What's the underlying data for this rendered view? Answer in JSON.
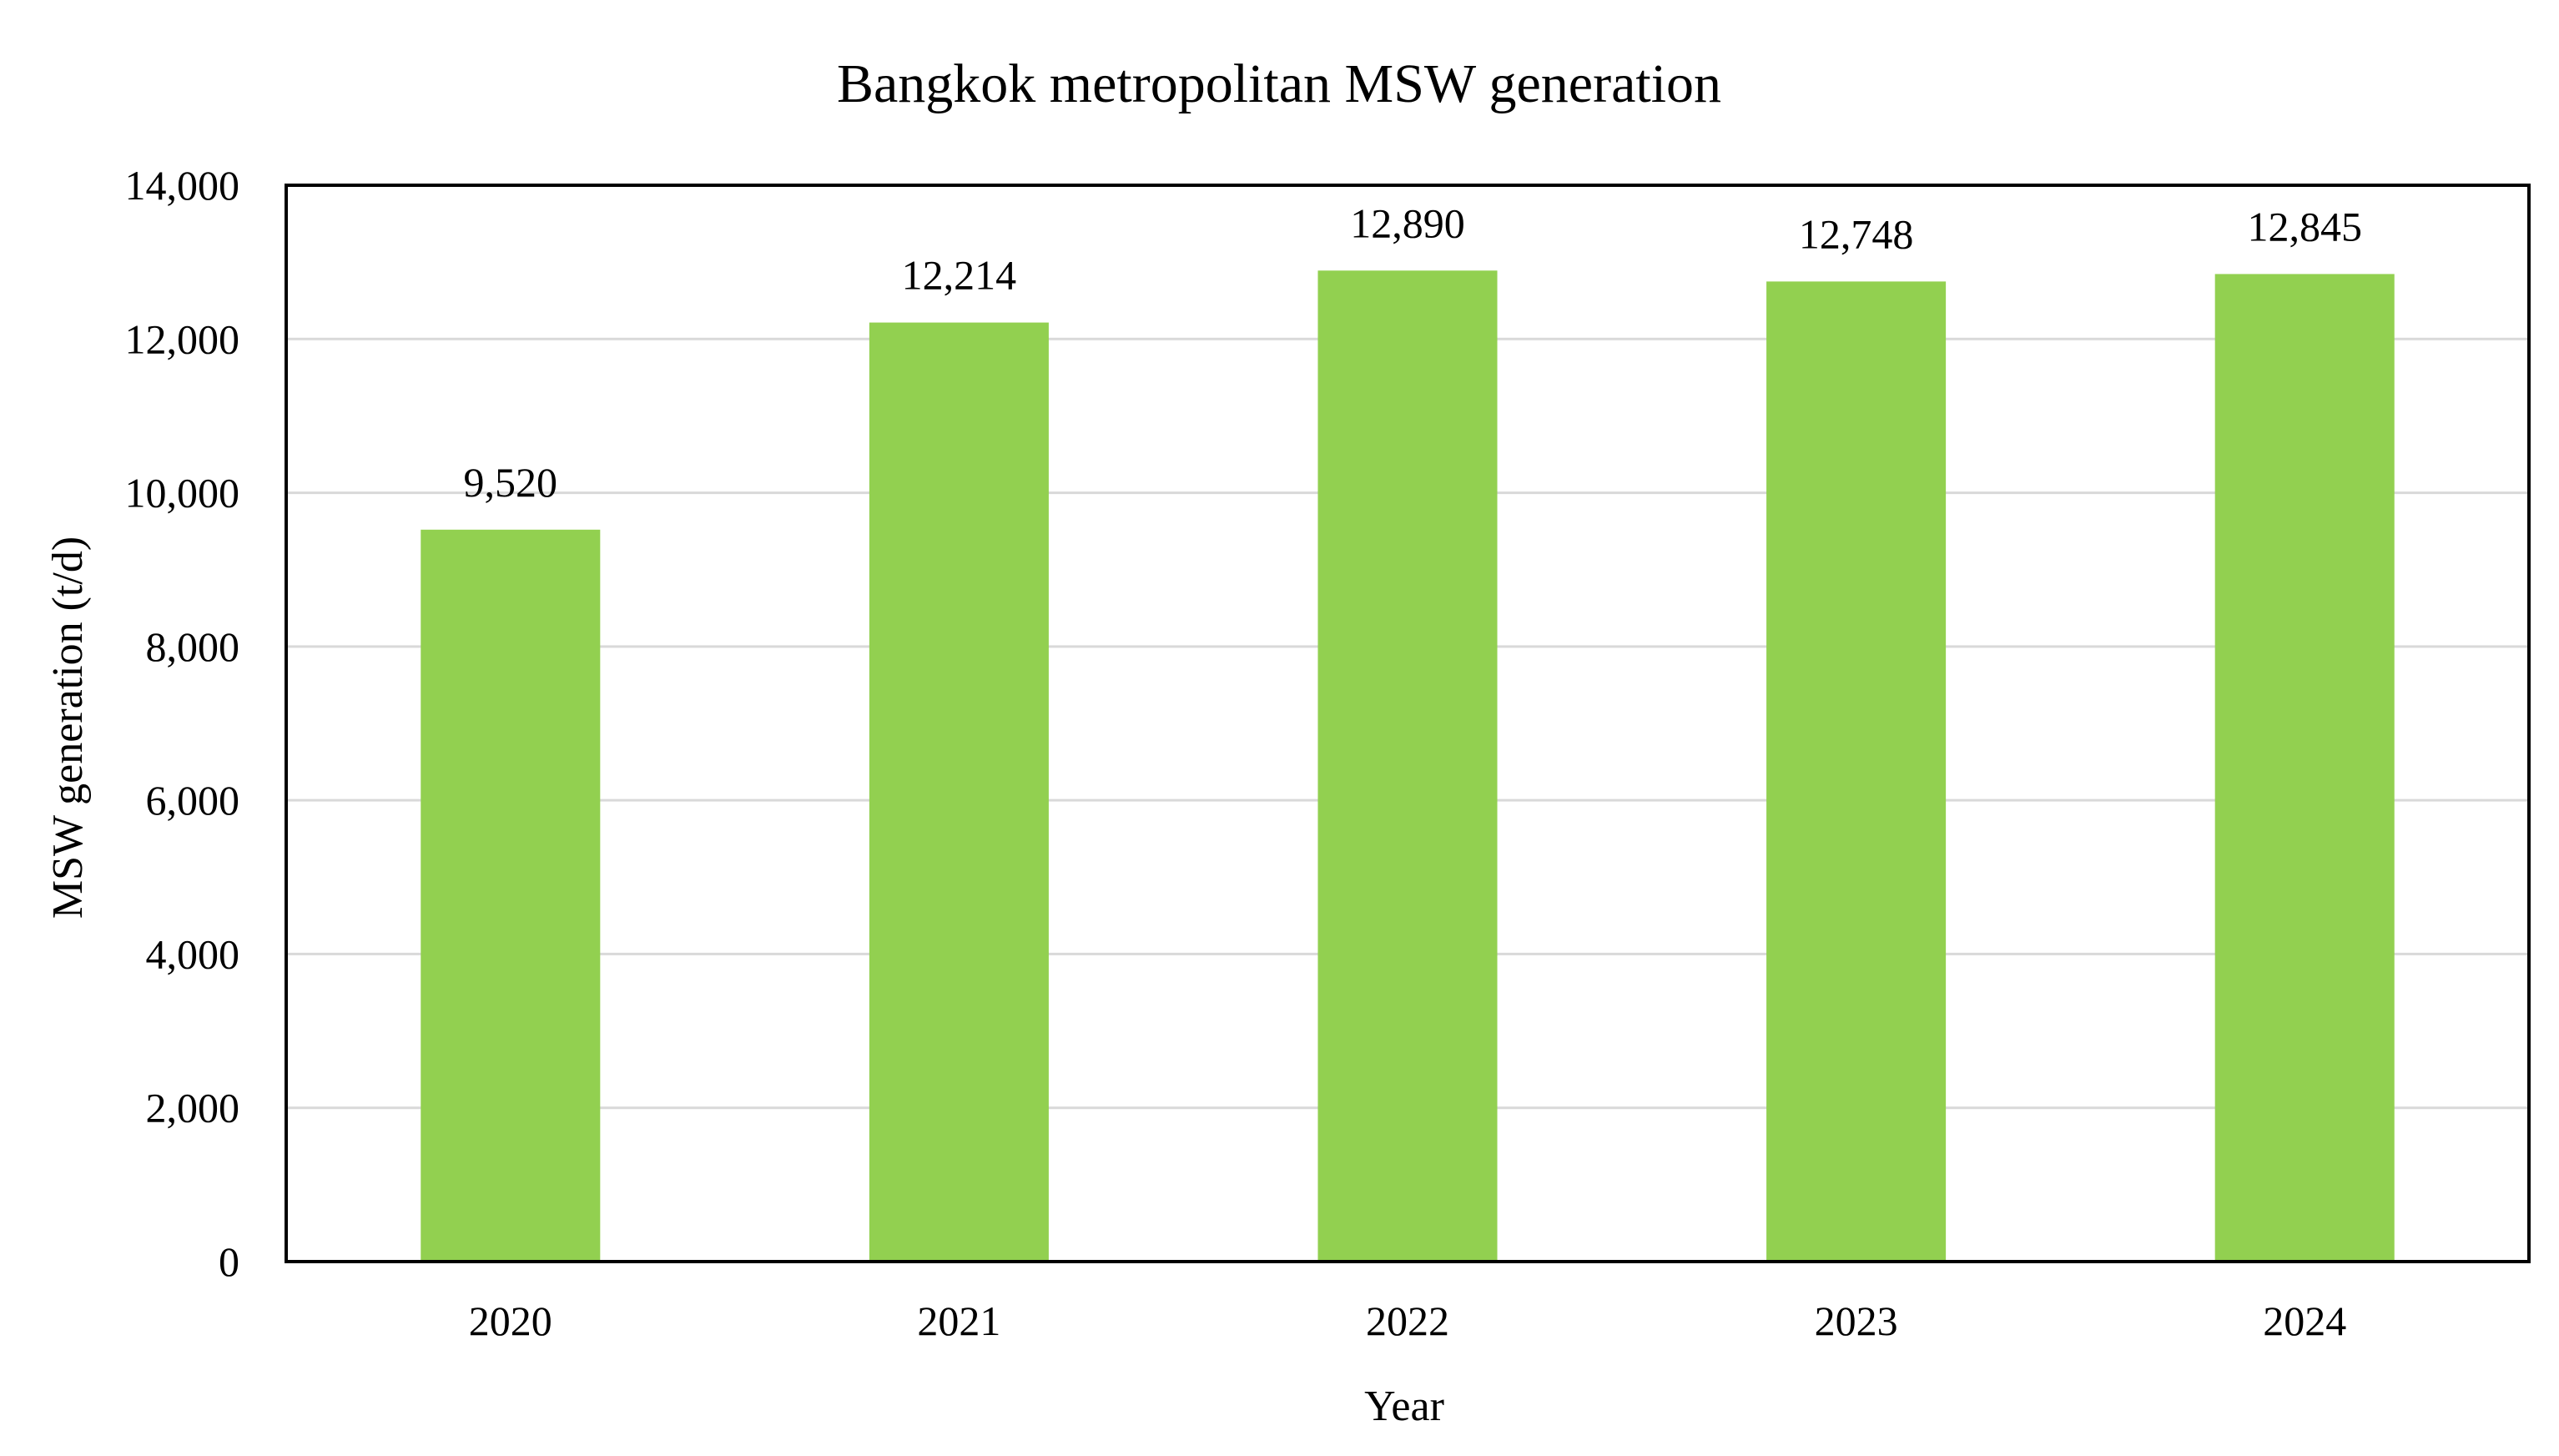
{
  "chart_data": {
    "type": "bar",
    "title": "Bangkok metropolitan MSW generation",
    "xlabel": "Year",
    "ylabel": "MSW generation (t/d)",
    "categories": [
      "2020",
      "2021",
      "2022",
      "2023",
      "2024"
    ],
    "values": [
      9520,
      12214,
      12890,
      12748,
      12845
    ],
    "value_labels": [
      "9,520",
      "12,214",
      "12,890",
      "12,748",
      "12,845"
    ],
    "ylim": [
      0,
      14000
    ],
    "yticks": [
      0,
      2000,
      4000,
      6000,
      8000,
      10000,
      12000,
      14000
    ],
    "ytick_labels": [
      "0",
      "2,000",
      "4,000",
      "6,000",
      "8,000",
      "10,000",
      "12,000",
      "14,000"
    ],
    "grid": true,
    "legend": "none",
    "colors": {
      "bar": "#92d050",
      "grid": "#d9d9d9",
      "axis": "#000000"
    }
  }
}
